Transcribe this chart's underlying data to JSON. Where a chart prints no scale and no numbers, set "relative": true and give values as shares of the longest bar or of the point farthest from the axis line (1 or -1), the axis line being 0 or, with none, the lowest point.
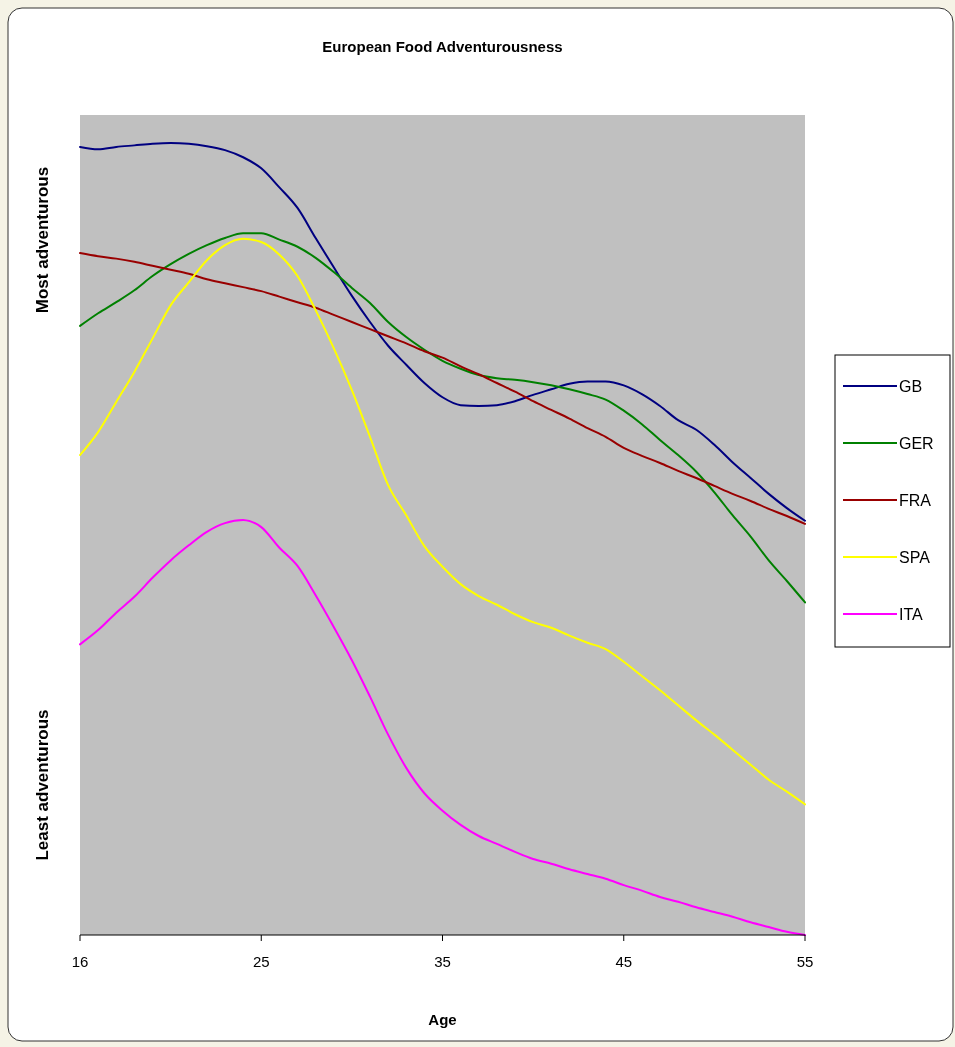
{
  "chart_data": {
    "type": "line",
    "title": "European Food Adventurousness",
    "xlabel": "Age",
    "relative": true,
    "annotations": [
      "Most adventurous",
      "Least adventurous"
    ],
    "categories": [
      "16",
      null,
      null,
      null,
      null,
      null,
      null,
      null,
      null,
      null,
      "25",
      null,
      null,
      null,
      null,
      null,
      null,
      null,
      null,
      null,
      "35",
      null,
      null,
      null,
      null,
      null,
      null,
      null,
      null,
      null,
      "45",
      null,
      null,
      null,
      null,
      null,
      null,
      null,
      null,
      null,
      "55"
    ],
    "series": [
      {
        "name": "GB",
        "color": "#000080",
        "values": [
          0.995,
          0.992,
          0.995,
          0.997,
          0.999,
          1,
          0.999,
          0.996,
          0.991,
          0.982,
          0.968,
          0.944,
          0.918,
          0.88,
          0.843,
          0.807,
          0.774,
          0.744,
          0.72,
          0.697,
          0.679,
          0.669,
          0.668,
          0.669,
          0.674,
          0.682,
          0.689,
          0.696,
          0.699,
          0.699,
          0.694,
          0.683,
          0.668,
          0.65,
          0.638,
          0.619,
          0.597,
          0.577,
          0.557,
          0.539,
          0.523
        ]
      },
      {
        "name": "GER",
        "color": "#008000",
        "values": [
          0.769,
          0.785,
          0.799,
          0.814,
          0.832,
          0.847,
          0.86,
          0.871,
          0.88,
          0.886,
          0.886,
          0.878,
          0.869,
          0.855,
          0.837,
          0.817,
          0.798,
          0.774,
          0.755,
          0.739,
          0.725,
          0.715,
          0.707,
          0.703,
          0.701,
          0.698,
          0.694,
          0.689,
          0.683,
          0.676,
          0.662,
          0.645,
          0.625,
          0.606,
          0.585,
          0.559,
          0.53,
          0.503,
          0.473,
          0.447,
          0.42
        ]
      },
      {
        "name": "FRA",
        "color": "#990000",
        "values": [
          0.861,
          0.857,
          0.854,
          0.85,
          0.845,
          0.84,
          0.835,
          0.828,
          0.823,
          0.818,
          0.813,
          0.806,
          0.799,
          0.792,
          0.783,
          0.774,
          0.765,
          0.756,
          0.747,
          0.737,
          0.729,
          0.718,
          0.708,
          0.697,
          0.686,
          0.674,
          0.663,
          0.652,
          0.64,
          0.629,
          0.615,
          0.605,
          0.596,
          0.586,
          0.577,
          0.567,
          0.557,
          0.548,
          0.538,
          0.529,
          0.519
        ]
      },
      {
        "name": "SPA",
        "color": "#ffff00",
        "values": [
          0.606,
          0.635,
          0.673,
          0.711,
          0.753,
          0.795,
          0.824,
          0.852,
          0.871,
          0.879,
          0.875,
          0.859,
          0.832,
          0.789,
          0.741,
          0.688,
          0.629,
          0.568,
          0.53,
          0.491,
          0.465,
          0.443,
          0.428,
          0.417,
          0.405,
          0.395,
          0.388,
          0.378,
          0.369,
          0.361,
          0.345,
          0.327,
          0.309,
          0.29,
          0.271,
          0.253,
          0.234,
          0.215,
          0.196,
          0.181,
          0.165
        ]
      },
      {
        "name": "ITA",
        "color": "#ff00ff",
        "values": [
          0.367,
          0.385,
          0.407,
          0.427,
          0.451,
          0.473,
          0.492,
          0.509,
          0.52,
          0.524,
          0.515,
          0.489,
          0.466,
          0.429,
          0.389,
          0.347,
          0.301,
          0.253,
          0.211,
          0.179,
          0.157,
          0.139,
          0.125,
          0.115,
          0.105,
          0.096,
          0.09,
          0.083,
          0.077,
          0.071,
          0.063,
          0.056,
          0.048,
          0.042,
          0.035,
          0.029,
          0.023,
          0.016,
          0.01,
          0.004,
          0
        ]
      }
    ],
    "legend": "right",
    "marker": "none",
    "line_style": "solid"
  }
}
